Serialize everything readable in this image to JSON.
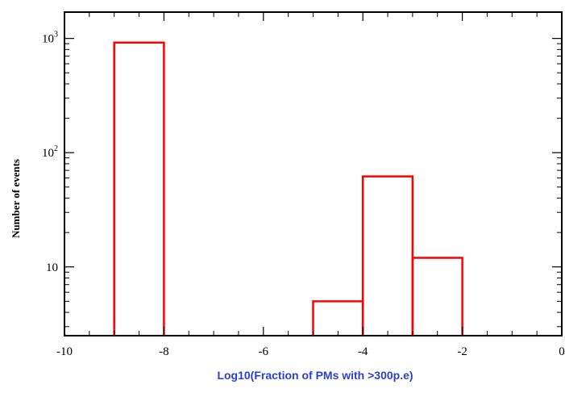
{
  "colors": {
    "axis": "#000000",
    "histogram": "#ff0000",
    "xlabel": "#2a3fd0",
    "background": "#ffffff"
  },
  "chart_data": {
    "type": "bar",
    "style": "step-histogram",
    "xlabel": "Log10(Fraction of PMs with >300p.e)",
    "ylabel": "Number of events",
    "y_scale": "log",
    "xlim": [
      -10,
      0
    ],
    "ylim": [
      2.5,
      1700
    ],
    "grid": false,
    "x_ticks": [
      {
        "value": -10,
        "label": "-10"
      },
      {
        "value": -8,
        "label": "-8"
      },
      {
        "value": -6,
        "label": "-6"
      },
      {
        "value": -4,
        "label": "-4"
      },
      {
        "value": -2,
        "label": "-2"
      },
      {
        "value": 0,
        "label": "0"
      }
    ],
    "y_ticks": [
      {
        "value": 10,
        "base": "10",
        "exp": ""
      },
      {
        "value": 100,
        "base": "10",
        "exp": "2"
      },
      {
        "value": 1000,
        "base": "10",
        "exp": "3"
      }
    ],
    "bins": [
      {
        "x0": -9,
        "x1": -8,
        "count": 920
      },
      {
        "x0": -5,
        "x1": -4,
        "count": 5
      },
      {
        "x0": -4,
        "x1": -3,
        "count": 62
      },
      {
        "x0": -3,
        "x1": -2,
        "count": 12
      }
    ]
  }
}
